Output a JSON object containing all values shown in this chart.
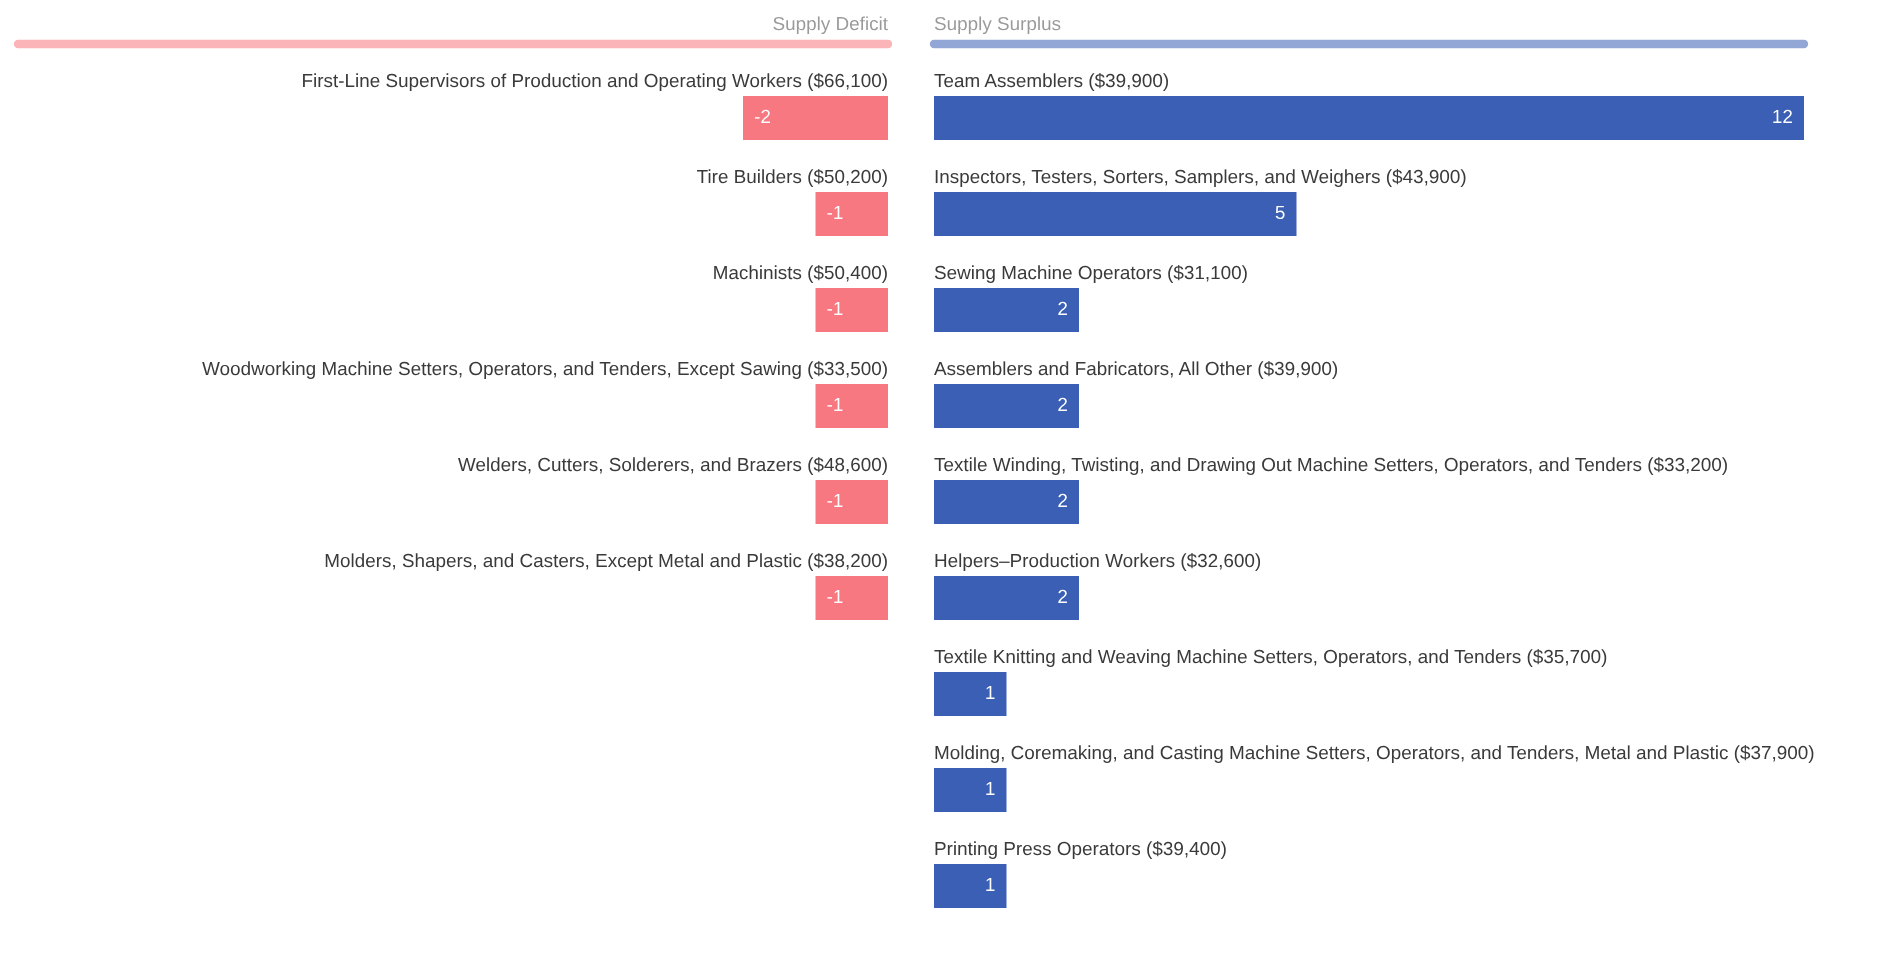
{
  "chart_data": [
    {
      "type": "bar",
      "orientation": "horizontal",
      "title": "Supply Deficit",
      "categories": [
        "First-Line Supervisors of Production and Operating Workers ($66,100)",
        "Tire Builders ($50,200)",
        "Machinists ($50,400)",
        "Woodworking Machine Setters, Operators, and Tenders, Except Sawing ($33,500)",
        "Welders, Cutters, Solderers, and Brazers ($48,600)",
        "Molders, Shapers, and Casters, Except Metal and Plastic ($38,200)"
      ],
      "values": [
        -2,
        -1,
        -1,
        -1,
        -1,
        -1
      ],
      "color": "#f77880",
      "data_labels": true,
      "tick_labels": "y"
    },
    {
      "type": "bar",
      "orientation": "horizontal",
      "title": "Supply Surplus",
      "categories": [
        "Team Assemblers ($39,900)",
        "Inspectors, Testers, Sorters, Samplers, and Weighers ($43,900)",
        "Sewing Machine Operators ($31,100)",
        "Assemblers and Fabricators, All Other ($39,900)",
        "Textile Winding, Twisting, and Drawing Out Machine Setters, Operators, and Tenders ($33,200)",
        "Helpers–Production Workers ($32,600)",
        "Textile Knitting and Weaving Machine Setters, Operators, and Tenders ($35,700)",
        "Molding, Coremaking, and Casting Machine Setters, Operators, and Tenders, Metal and Plastic ($37,900)",
        "Printing Press Operators ($39,400)"
      ],
      "values": [
        12,
        5,
        2,
        2,
        2,
        2,
        1,
        1,
        1
      ],
      "color": "#3b5fb4",
      "data_labels": true,
      "tick_labels": "y"
    }
  ]
}
